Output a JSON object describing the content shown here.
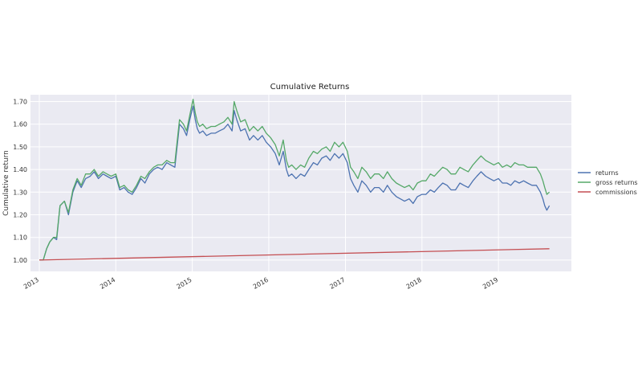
{
  "chart_data": {
    "type": "line",
    "title": "Cumulative Returns",
    "xlabel": "",
    "ylabel": "Cumulative return",
    "xlim": [
      "2012-11-20",
      "2019-12-15"
    ],
    "ylim": [
      0.95,
      1.73
    ],
    "x_ticks": [
      "2013",
      "2014",
      "2015",
      "2016",
      "2017",
      "2018",
      "2019"
    ],
    "y_ticks": [
      "1.00",
      "1.10",
      "1.20",
      "1.30",
      "1.40",
      "1.50",
      "1.60",
      "1.70"
    ],
    "grid": true,
    "legend_position": "right",
    "colors": {
      "returns": "#4c72b0",
      "gross returns": "#55a868",
      "commissions": "#c44e52",
      "background": "#eaeaf2"
    },
    "series": [
      {
        "name": "returns",
        "color": "#4c72b0",
        "x": [
          "2013-01-01",
          "2013-01-20",
          "2013-02-05",
          "2013-02-20",
          "2013-03-10",
          "2013-03-25",
          "2013-04-10",
          "2013-05-01",
          "2013-05-20",
          "2013-06-10",
          "2013-07-01",
          "2013-07-20",
          "2013-08-10",
          "2013-09-01",
          "2013-09-20",
          "2013-10-10",
          "2013-11-01",
          "2013-11-20",
          "2013-12-10",
          "2014-01-01",
          "2014-01-20",
          "2014-02-10",
          "2014-03-01",
          "2014-03-20",
          "2014-04-10",
          "2014-05-01",
          "2014-05-20",
          "2014-06-10",
          "2014-07-01",
          "2014-07-20",
          "2014-08-10",
          "2014-09-01",
          "2014-09-20",
          "2014-10-10",
          "2014-11-01",
          "2014-11-20",
          "2014-12-05",
          "2014-12-20",
          "2015-01-05",
          "2015-01-15",
          "2015-01-25",
          "2015-02-05",
          "2015-02-20",
          "2015-03-10",
          "2015-04-01",
          "2015-04-20",
          "2015-05-10",
          "2015-06-01",
          "2015-06-20",
          "2015-07-10",
          "2015-07-20",
          "2015-08-01",
          "2015-08-20",
          "2015-09-10",
          "2015-10-01",
          "2015-10-20",
          "2015-11-10",
          "2015-12-01",
          "2015-12-20",
          "2016-01-10",
          "2016-02-01",
          "2016-02-20",
          "2016-03-10",
          "2016-03-25",
          "2016-04-05",
          "2016-04-20",
          "2016-05-10",
          "2016-06-01",
          "2016-06-20",
          "2016-07-10",
          "2016-08-01",
          "2016-08-20",
          "2016-09-10",
          "2016-10-01",
          "2016-10-20",
          "2016-11-10",
          "2016-12-01",
          "2016-12-20",
          "2017-01-10",
          "2017-01-25",
          "2017-02-10",
          "2017-03-01",
          "2017-03-20",
          "2017-04-10",
          "2017-05-01",
          "2017-05-20",
          "2017-06-10",
          "2017-07-01",
          "2017-07-20",
          "2017-08-10",
          "2017-09-01",
          "2017-09-20",
          "2017-10-10",
          "2017-11-01",
          "2017-11-20",
          "2017-12-10",
          "2018-01-01",
          "2018-01-20",
          "2018-02-10",
          "2018-03-01",
          "2018-03-20",
          "2018-04-10",
          "2018-05-01",
          "2018-05-20",
          "2018-06-10",
          "2018-07-01",
          "2018-07-20",
          "2018-08-10",
          "2018-09-01",
          "2018-09-20",
          "2018-10-10",
          "2018-11-01",
          "2018-11-20",
          "2018-12-10",
          "2019-01-01",
          "2019-01-20",
          "2019-02-10",
          "2019-03-01",
          "2019-03-20",
          "2019-04-10",
          "2019-05-01",
          "2019-05-20",
          "2019-06-10",
          "2019-07-01",
          "2019-07-20",
          "2019-08-01",
          "2019-08-10",
          "2019-08-20",
          "2019-09-01"
        ],
        "values": [
          1.0,
          1.0,
          1.05,
          1.08,
          1.1,
          1.09,
          1.24,
          1.26,
          1.2,
          1.3,
          1.35,
          1.32,
          1.36,
          1.37,
          1.39,
          1.36,
          1.38,
          1.37,
          1.36,
          1.37,
          1.31,
          1.32,
          1.3,
          1.29,
          1.32,
          1.36,
          1.34,
          1.38,
          1.4,
          1.41,
          1.4,
          1.43,
          1.42,
          1.41,
          1.6,
          1.58,
          1.55,
          1.62,
          1.68,
          1.62,
          1.58,
          1.56,
          1.57,
          1.55,
          1.56,
          1.56,
          1.57,
          1.58,
          1.6,
          1.57,
          1.66,
          1.62,
          1.57,
          1.58,
          1.53,
          1.55,
          1.53,
          1.55,
          1.52,
          1.5,
          1.47,
          1.42,
          1.48,
          1.4,
          1.37,
          1.38,
          1.36,
          1.38,
          1.37,
          1.4,
          1.43,
          1.42,
          1.45,
          1.46,
          1.44,
          1.47,
          1.45,
          1.47,
          1.43,
          1.36,
          1.33,
          1.3,
          1.35,
          1.33,
          1.3,
          1.32,
          1.32,
          1.3,
          1.33,
          1.3,
          1.28,
          1.27,
          1.26,
          1.27,
          1.25,
          1.28,
          1.29,
          1.29,
          1.31,
          1.3,
          1.32,
          1.34,
          1.33,
          1.31,
          1.31,
          1.34,
          1.33,
          1.32,
          1.35,
          1.37,
          1.39,
          1.37,
          1.36,
          1.35,
          1.36,
          1.34,
          1.34,
          1.33,
          1.35,
          1.34,
          1.35,
          1.34,
          1.33,
          1.33,
          1.3,
          1.27,
          1.24,
          1.22,
          1.24
        ]
      },
      {
        "name": "gross returns",
        "color": "#55a868",
        "x": [
          "2013-01-01",
          "2013-01-20",
          "2013-02-05",
          "2013-02-20",
          "2013-03-10",
          "2013-03-25",
          "2013-04-10",
          "2013-05-01",
          "2013-05-20",
          "2013-06-10",
          "2013-07-01",
          "2013-07-20",
          "2013-08-10",
          "2013-09-01",
          "2013-09-20",
          "2013-10-10",
          "2013-11-01",
          "2013-11-20",
          "2013-12-10",
          "2014-01-01",
          "2014-01-20",
          "2014-02-10",
          "2014-03-01",
          "2014-03-20",
          "2014-04-10",
          "2014-05-01",
          "2014-05-20",
          "2014-06-10",
          "2014-07-01",
          "2014-07-20",
          "2014-08-10",
          "2014-09-01",
          "2014-09-20",
          "2014-10-10",
          "2014-11-01",
          "2014-11-20",
          "2014-12-05",
          "2014-12-20",
          "2015-01-05",
          "2015-01-15",
          "2015-01-25",
          "2015-02-05",
          "2015-02-20",
          "2015-03-10",
          "2015-04-01",
          "2015-04-20",
          "2015-05-10",
          "2015-06-01",
          "2015-06-20",
          "2015-07-10",
          "2015-07-20",
          "2015-08-01",
          "2015-08-20",
          "2015-09-10",
          "2015-10-01",
          "2015-10-20",
          "2015-11-10",
          "2015-12-01",
          "2015-12-20",
          "2016-01-10",
          "2016-02-01",
          "2016-02-20",
          "2016-03-10",
          "2016-03-25",
          "2016-04-05",
          "2016-04-20",
          "2016-05-10",
          "2016-06-01",
          "2016-06-20",
          "2016-07-10",
          "2016-08-01",
          "2016-08-20",
          "2016-09-10",
          "2016-10-01",
          "2016-10-20",
          "2016-11-10",
          "2016-12-01",
          "2016-12-20",
          "2017-01-10",
          "2017-01-25",
          "2017-02-10",
          "2017-03-01",
          "2017-03-20",
          "2017-04-10",
          "2017-05-01",
          "2017-05-20",
          "2017-06-10",
          "2017-07-01",
          "2017-07-20",
          "2017-08-10",
          "2017-09-01",
          "2017-09-20",
          "2017-10-10",
          "2017-11-01",
          "2017-11-20",
          "2017-12-10",
          "2018-01-01",
          "2018-01-20",
          "2018-02-10",
          "2018-03-01",
          "2018-03-20",
          "2018-04-10",
          "2018-05-01",
          "2018-05-20",
          "2018-06-10",
          "2018-07-01",
          "2018-07-20",
          "2018-08-10",
          "2018-09-01",
          "2018-09-20",
          "2018-10-10",
          "2018-11-01",
          "2018-11-20",
          "2018-12-10",
          "2019-01-01",
          "2019-01-20",
          "2019-02-10",
          "2019-03-01",
          "2019-03-20",
          "2019-04-10",
          "2019-05-01",
          "2019-05-20",
          "2019-06-10",
          "2019-07-01",
          "2019-07-20",
          "2019-08-01",
          "2019-08-10",
          "2019-08-20",
          "2019-09-01"
        ],
        "values": [
          1.0,
          1.0,
          1.05,
          1.08,
          1.1,
          1.1,
          1.24,
          1.26,
          1.21,
          1.31,
          1.36,
          1.33,
          1.38,
          1.38,
          1.4,
          1.37,
          1.39,
          1.38,
          1.37,
          1.38,
          1.32,
          1.33,
          1.31,
          1.3,
          1.33,
          1.37,
          1.36,
          1.39,
          1.41,
          1.42,
          1.42,
          1.44,
          1.43,
          1.43,
          1.62,
          1.6,
          1.57,
          1.64,
          1.71,
          1.65,
          1.61,
          1.59,
          1.6,
          1.58,
          1.59,
          1.59,
          1.6,
          1.61,
          1.63,
          1.6,
          1.7,
          1.66,
          1.61,
          1.62,
          1.57,
          1.59,
          1.57,
          1.59,
          1.56,
          1.54,
          1.51,
          1.46,
          1.53,
          1.44,
          1.41,
          1.42,
          1.4,
          1.42,
          1.41,
          1.45,
          1.48,
          1.47,
          1.49,
          1.5,
          1.48,
          1.52,
          1.5,
          1.52,
          1.48,
          1.41,
          1.39,
          1.36,
          1.41,
          1.39,
          1.36,
          1.38,
          1.38,
          1.36,
          1.39,
          1.36,
          1.34,
          1.33,
          1.32,
          1.33,
          1.31,
          1.34,
          1.35,
          1.35,
          1.38,
          1.37,
          1.39,
          1.41,
          1.4,
          1.38,
          1.38,
          1.41,
          1.4,
          1.39,
          1.42,
          1.44,
          1.46,
          1.44,
          1.43,
          1.42,
          1.43,
          1.41,
          1.42,
          1.41,
          1.43,
          1.42,
          1.42,
          1.41,
          1.41,
          1.41,
          1.38,
          1.35,
          1.32,
          1.29,
          1.3
        ]
      },
      {
        "name": "commissions",
        "color": "#c44e52",
        "x": [
          "2013-01-01",
          "2019-09-01"
        ],
        "values": [
          1.0,
          1.05
        ]
      }
    ]
  }
}
